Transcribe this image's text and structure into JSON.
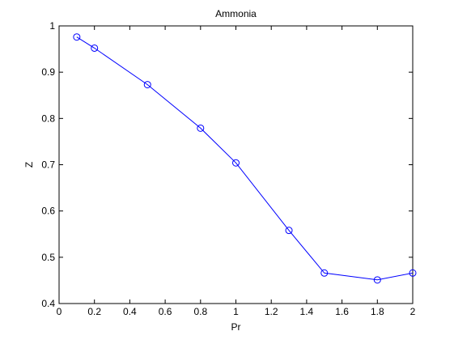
{
  "chart_data": {
    "type": "line",
    "title": "Ammonia",
    "xlabel": "Pr",
    "ylabel": "Z",
    "xlim": [
      0,
      2
    ],
    "ylim": [
      0.4,
      1
    ],
    "xticks": [
      "0",
      "0.2",
      "0.4",
      "0.6",
      "0.8",
      "1",
      "1.2",
      "1.4",
      "1.6",
      "1.8",
      "2"
    ],
    "yticks": [
      "0.4",
      "0.5",
      "0.6",
      "0.7",
      "0.8",
      "0.9",
      "1"
    ],
    "grid": false,
    "series": [
      {
        "x": [
          0.1,
          0.2,
          0.5,
          0.8,
          1.0,
          1.3,
          1.5,
          1.8,
          2.0
        ],
        "y": [
          0.976,
          0.952,
          0.873,
          0.779,
          0.704,
          0.558,
          0.466,
          0.451,
          0.466
        ],
        "color": "#0000ff",
        "marker": "circle"
      }
    ]
  }
}
